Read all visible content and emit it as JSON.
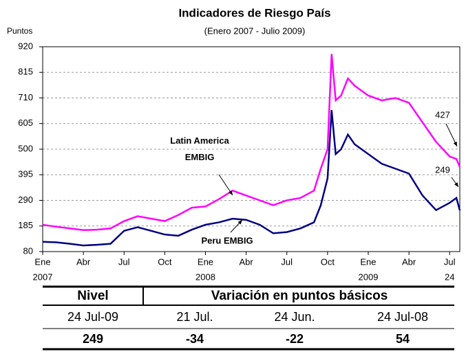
{
  "chart_data": {
    "type": "line",
    "title": "Indicadores de Riesgo País",
    "subtitle": "(Enero 2007 - Julio 2009)",
    "y_label": "Puntos",
    "x": [
      0,
      1,
      2,
      3,
      4,
      5,
      6,
      7,
      8,
      9,
      10,
      11,
      12,
      13,
      14,
      15,
      16,
      17,
      18,
      19,
      20,
      20.5,
      21,
      21.3,
      21.6,
      22,
      22.5,
      23,
      24,
      25,
      26,
      27,
      28,
      29,
      30,
      30.5,
      30.75
    ],
    "series": [
      {
        "name": "Latin America EMBIG",
        "color": "#ff00ff",
        "values": [
          190,
          182,
          175,
          168,
          170,
          175,
          205,
          225,
          215,
          205,
          230,
          260,
          265,
          295,
          330,
          310,
          290,
          270,
          290,
          300,
          330,
          420,
          500,
          890,
          700,
          720,
          790,
          760,
          720,
          700,
          710,
          690,
          610,
          530,
          470,
          460,
          427
        ]
      },
      {
        "name": "Peru EMBIG",
        "color": "#000080",
        "values": [
          120,
          118,
          112,
          105,
          108,
          112,
          165,
          180,
          165,
          150,
          145,
          170,
          190,
          200,
          215,
          210,
          190,
          155,
          160,
          175,
          200,
          270,
          380,
          660,
          480,
          500,
          560,
          520,
          480,
          440,
          420,
          400,
          310,
          250,
          280,
          300,
          249
        ]
      }
    ],
    "xlim": [
      0,
      30.75
    ],
    "xticks": [
      {
        "value": 0,
        "label": "Ene"
      },
      {
        "value": 3,
        "label": "Abr"
      },
      {
        "value": 6,
        "label": "Jul"
      },
      {
        "value": 9,
        "label": "Oct"
      },
      {
        "value": 12,
        "label": "Ene"
      },
      {
        "value": 15,
        "label": "Abr"
      },
      {
        "value": 18,
        "label": "Jul"
      },
      {
        "value": 21,
        "label": "Oct"
      },
      {
        "value": 24,
        "label": "Ene"
      },
      {
        "value": 27,
        "label": "Abr"
      },
      {
        "value": 30,
        "label": "Jul"
      }
    ],
    "xsublabels": [
      {
        "value": 0,
        "label": "2007"
      },
      {
        "value": 12,
        "label": "2008"
      },
      {
        "value": 24,
        "label": "2009"
      },
      {
        "value": 30,
        "label": "24"
      }
    ],
    "ylim": [
      80,
      920
    ],
    "yticks": [
      80,
      185,
      290,
      395,
      500,
      605,
      710,
      815,
      920
    ],
    "grid": true
  },
  "table": {
    "header": [
      "Nivel",
      "Variación en puntos básicos"
    ],
    "rows": [
      [
        "24 Jul-09",
        "21 Jul.",
        "24 Jun.",
        "24 Jul-08"
      ],
      [
        "249",
        "-34",
        "-22",
        "54"
      ]
    ]
  }
}
